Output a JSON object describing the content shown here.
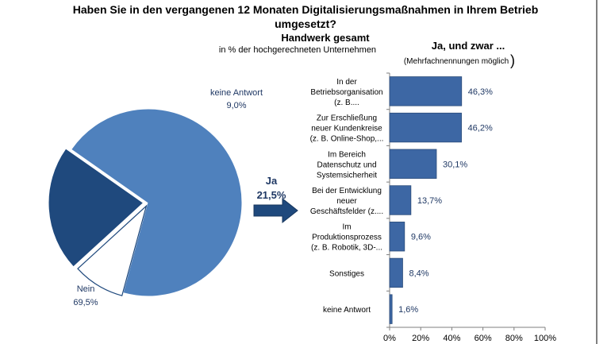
{
  "chart_data": [
    {
      "type": "pie",
      "title": "Haben Sie in den vergangenen 12 Monaten Digitalisierungsmaßnahmen in Ihrem Betrieb umgesetzt?",
      "subtitle": "Handwerk gesamt",
      "note": "in % der hochgerechneten Unternehmen",
      "slices": [
        {
          "label": "Nein",
          "value": 69.5,
          "value_label": "69,5%",
          "color": "#4F81BD"
        },
        {
          "label": "keine Antwort",
          "value": 9.0,
          "value_label": "9,0%",
          "color": "#ffffff"
        },
        {
          "label": "Ja",
          "value": 21.5,
          "value_label": "21,5%",
          "color": "#1F497D"
        }
      ]
    },
    {
      "type": "bar",
      "orientation": "horizontal",
      "title": "Ja, und zwar ...",
      "subtitle": "(Mehrfachnennungen möglich",
      "categories": [
        [
          "In der",
          "Betriebsorganisation",
          "(z. B...."
        ],
        [
          "Zur Erschließung",
          "neuer Kundenkreise",
          "(z. B. Online-Shop,..."
        ],
        [
          "Im Bereich",
          "Datenschutz und",
          "Systemsicherheit"
        ],
        [
          "Bei der Entwicklung",
          "neuer",
          "Geschäftsfelder (z...."
        ],
        [
          "Im",
          "Produktionsprozess",
          "(z. B. Robotik, 3D-..."
        ],
        [
          "Sonstiges"
        ],
        [
          "keine Antwort"
        ]
      ],
      "values": [
        46.3,
        46.2,
        30.1,
        13.7,
        9.6,
        8.4,
        1.6
      ],
      "value_labels": [
        "46,3%",
        "46,2%",
        "30,1%",
        "13,7%",
        "9,6%",
        "8,4%",
        "1,6%"
      ],
      "xlim": [
        0,
        100
      ],
      "x_ticks": [
        "0%",
        "20%",
        "40%",
        "60%",
        "80%",
        "100%"
      ],
      "color": "#3D67A4"
    }
  ],
  "colors": {
    "arrow_fill": "#1F497D",
    "bar_fill": "#3D67A4"
  }
}
